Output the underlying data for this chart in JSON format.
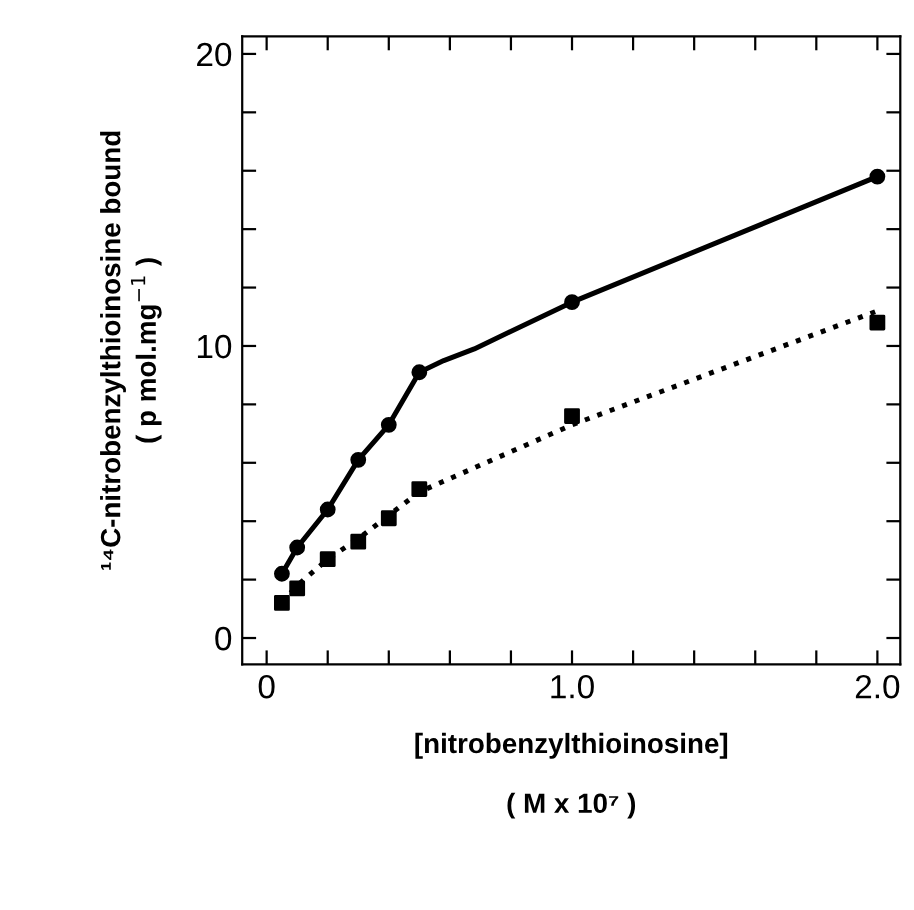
{
  "chart_data": {
    "type": "scatter",
    "xlabel": "[nitrobenzylthioinosine]\n\n( M x 10⁷ )",
    "ylabel": "¹⁴C-nitrobenzylthioinosine bound\n( p mol.mg$^{−1}$ )",
    "xlim": [
      -0.08,
      2.075
    ],
    "ylim": [
      -0.9,
      20.6
    ],
    "xticks": [
      {
        "value": 0,
        "label": "0"
      },
      {
        "value": 0.2,
        "label": null
      },
      {
        "value": 0.4,
        "label": null
      },
      {
        "value": 0.6,
        "label": null
      },
      {
        "value": 0.8,
        "label": null
      },
      {
        "value": 1.0,
        "label": "1.0"
      },
      {
        "value": 1.2,
        "label": null
      },
      {
        "value": 1.4,
        "label": null
      },
      {
        "value": 1.6,
        "label": null
      },
      {
        "value": 1.8,
        "label": null
      },
      {
        "value": 2.0,
        "label": "2.0"
      }
    ],
    "yticks": [
      0,
      {
        "value": 2,
        "label": null
      },
      {
        "value": 4,
        "label": null
      },
      {
        "value": 6,
        "label": null
      },
      {
        "value": 8,
        "label": null
      },
      10,
      {
        "value": 12,
        "label": null
      },
      {
        "value": 14,
        "label": null
      },
      {
        "value": 16,
        "label": null
      },
      {
        "value": 18,
        "label": null
      },
      20
    ],
    "grid": false,
    "legend": false,
    "series": [
      {
        "type": "line",
        "color": "#000000",
        "line_style": "solid",
        "marker": "none",
        "x": [
          0.05,
          0.1,
          0.2,
          0.3,
          0.4,
          0.5,
          0.58,
          0.68,
          1.0,
          2.0
        ],
        "values": [
          2.2,
          3.1,
          4.4,
          6.1,
          7.3,
          9.1,
          9.5,
          9.9,
          11.5,
          15.8
        ]
      },
      {
        "type": "line",
        "color": "#000000",
        "line_style": "dotted",
        "marker": "none",
        "x": [
          0.05,
          0.1,
          0.2,
          0.3,
          0.4,
          0.5,
          1.0,
          2.0
        ],
        "values": [
          1.2,
          1.8,
          2.7,
          3.4,
          4.2,
          5.0,
          7.3,
          11.2
        ]
      },
      {
        "color": "#000000",
        "marker": "circle",
        "x": [
          0.05,
          0.1,
          0.2,
          0.3,
          0.4,
          0.5,
          1.0,
          2.0
        ],
        "values": [
          2.2,
          3.1,
          4.4,
          6.1,
          7.3,
          9.1,
          11.5,
          15.8
        ]
      },
      {
        "type": "scatter",
        "color": "#000000",
        "marker": "square",
        "x": [
          0.05,
          0.1,
          0.2,
          0.3,
          0.4,
          0.5,
          1.0,
          2.0
        ],
        "values": [
          1.2,
          1.7,
          2.7,
          3.3,
          4.1,
          5.1,
          7.6,
          10.8
        ]
      }
    ]
  }
}
